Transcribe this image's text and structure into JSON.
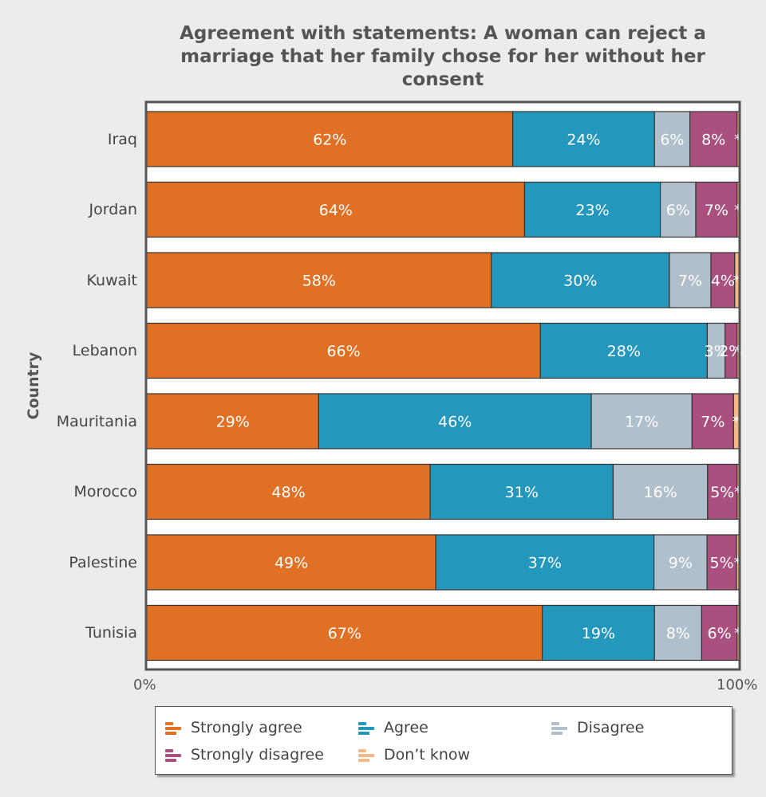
{
  "chart_data": {
    "type": "bar",
    "orientation": "horizontal",
    "stacked": true,
    "title": "Agreement with statements: A woman can reject a marriage that her family chose for her without her consent",
    "ylabel": "Country",
    "xlim": [
      0,
      100
    ],
    "x_ticks": [
      "0%",
      "100%"
    ],
    "categories": [
      "Iraq",
      "Jordan",
      "Kuwait",
      "Lebanon",
      "Mauritania",
      "Morocco",
      "Palestine",
      "Tunisia"
    ],
    "series": [
      {
        "name": "Strongly agree",
        "color": "#e07024",
        "values": [
          62,
          64,
          58,
          66,
          29,
          48,
          49,
          67
        ],
        "labels": [
          "62%",
          "64%",
          "58%",
          "66%",
          "29%",
          "48%",
          "49%",
          "67%"
        ]
      },
      {
        "name": "Agree",
        "color": "#2497bd",
        "values": [
          24,
          23,
          30,
          28,
          46,
          31,
          37,
          19
        ],
        "labels": [
          "24%",
          "23%",
          "30%",
          "28%",
          "46%",
          "31%",
          "37%",
          "19%"
        ]
      },
      {
        "name": "Disagree",
        "color": "#afbfcb",
        "values": [
          6,
          6,
          7,
          3,
          17,
          16,
          9,
          8
        ],
        "labels": [
          "6%",
          "6%",
          "7%",
          "3%",
          "17%",
          "16%",
          "9%",
          "8%"
        ]
      },
      {
        "name": "Strongly disagree",
        "color": "#a9507e",
        "values": [
          8,
          7,
          4,
          2,
          7,
          5,
          5,
          6
        ],
        "labels": [
          "8%",
          "7%",
          "4%",
          "2%",
          "7%",
          "5%",
          "5%",
          "6%"
        ]
      },
      {
        "name": "Don’t know",
        "color": "#f2b98a",
        "values": [
          0.3,
          0.3,
          0.7,
          0.3,
          0.9,
          0.3,
          0.4,
          0.3
        ],
        "labels": [
          "*",
          "*",
          "*",
          "*",
          "*",
          "*",
          "*",
          "*"
        ]
      }
    ],
    "legend_position": "bottom",
    "grid": false
  }
}
